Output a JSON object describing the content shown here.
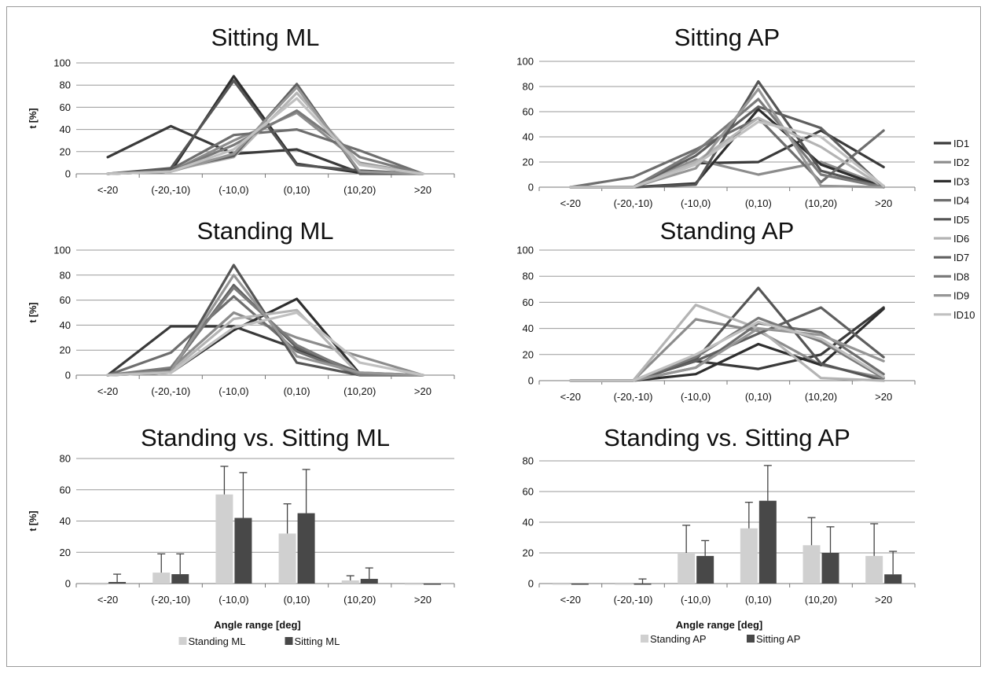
{
  "chart_data": [
    {
      "type": "line",
      "title": "Sitting ML",
      "ylabel": "t [%]",
      "ylim": [
        0,
        100
      ],
      "yticks": [
        0,
        20,
        40,
        60,
        80,
        100
      ],
      "grid": "horizontal",
      "categories": [
        "<-20",
        "(-20,-10)",
        "(-10,0)",
        "(0,10)",
        "(10,20)",
        ">20"
      ],
      "series": [
        {
          "name": "ID1",
          "color": "#3a3a3a",
          "values": [
            15,
            43,
            18,
            22,
            1,
            0
          ]
        },
        {
          "name": "ID2",
          "color": "#8c8c8c",
          "values": [
            0,
            2,
            30,
            55,
            10,
            0
          ]
        },
        {
          "name": "ID3",
          "color": "#2e2e2e",
          "values": [
            0,
            2,
            88,
            9,
            1,
            0
          ]
        },
        {
          "name": "ID4",
          "color": "#6e6e6e",
          "values": [
            0,
            4,
            35,
            40,
            21,
            0
          ]
        },
        {
          "name": "ID5",
          "color": "#555555",
          "values": [
            0,
            5,
            84,
            8,
            3,
            0
          ]
        },
        {
          "name": "ID6",
          "color": "#b4b4b4",
          "values": [
            0,
            3,
            15,
            73,
            9,
            0
          ]
        },
        {
          "name": "ID7",
          "color": "#5f5f5f",
          "values": [
            0,
            4,
            16,
            81,
            0,
            0
          ]
        },
        {
          "name": "ID8",
          "color": "#7a7a7a",
          "values": [
            0,
            2,
            26,
            57,
            15,
            0
          ]
        },
        {
          "name": "ID9",
          "color": "#969696",
          "values": [
            0,
            2,
            18,
            78,
            2,
            0
          ]
        },
        {
          "name": "ID10",
          "color": "#c0c0c0",
          "values": [
            0,
            2,
            22,
            68,
            8,
            0
          ]
        }
      ]
    },
    {
      "type": "line",
      "title": "Sitting AP",
      "ylim": [
        0,
        100
      ],
      "yticks": [
        0,
        20,
        40,
        60,
        80,
        100
      ],
      "grid": "horizontal",
      "categories": [
        "<-20",
        "(-20,-10)",
        "(-10,0)",
        "(0,10)",
        "(10,20)",
        ">20"
      ],
      "legend": "right",
      "series": [
        {
          "name": "ID1",
          "color": "#3a3a3a",
          "values": [
            0,
            0,
            19,
            20,
            45,
            16
          ]
        },
        {
          "name": "ID2",
          "color": "#8c8c8c",
          "values": [
            0,
            0,
            22,
            10,
            20,
            1
          ]
        },
        {
          "name": "ID3",
          "color": "#2e2e2e",
          "values": [
            0,
            0,
            3,
            62,
            18,
            0
          ]
        },
        {
          "name": "ID4",
          "color": "#6e6e6e",
          "values": [
            0,
            8,
            30,
            55,
            4,
            45
          ]
        },
        {
          "name": "ID5",
          "color": "#555555",
          "values": [
            0,
            0,
            2,
            84,
            13,
            0
          ]
        },
        {
          "name": "ID6",
          "color": "#b4b4b4",
          "values": [
            0,
            0,
            20,
            55,
            32,
            0
          ]
        },
        {
          "name": "ID7",
          "color": "#5f5f5f",
          "values": [
            0,
            0,
            25,
            64,
            47,
            0
          ]
        },
        {
          "name": "ID8",
          "color": "#7a7a7a",
          "values": [
            0,
            0,
            28,
            70,
            10,
            0
          ]
        },
        {
          "name": "ID9",
          "color": "#969696",
          "values": [
            0,
            0,
            15,
            78,
            1,
            0
          ]
        },
        {
          "name": "ID10",
          "color": "#c0c0c0",
          "values": [
            0,
            0,
            18,
            52,
            40,
            1
          ]
        }
      ]
    },
    {
      "type": "line",
      "title": "Standing ML",
      "ylabel": "t [%]",
      "ylim": [
        0,
        100
      ],
      "yticks": [
        0,
        20,
        40,
        60,
        80,
        100
      ],
      "grid": "horizontal",
      "categories": [
        "<-20",
        "(-20,-10)",
        "(-10,0)",
        "(0,10)",
        "(10,20)",
        ">20"
      ],
      "series": [
        {
          "name": "ID1",
          "color": "#3a3a3a",
          "values": [
            0,
            39,
            39,
            21,
            1,
            0
          ]
        },
        {
          "name": "ID2",
          "color": "#8c8c8c",
          "values": [
            0,
            5,
            50,
            30,
            15,
            0
          ]
        },
        {
          "name": "ID3",
          "color": "#2e2e2e",
          "values": [
            0,
            2,
            36,
            61,
            1,
            0
          ]
        },
        {
          "name": "ID4",
          "color": "#6e6e6e",
          "values": [
            0,
            18,
            63,
            19,
            0,
            0
          ]
        },
        {
          "name": "ID5",
          "color": "#555555",
          "values": [
            0,
            2,
            88,
            10,
            0,
            0
          ]
        },
        {
          "name": "ID6",
          "color": "#b4b4b4",
          "values": [
            0,
            3,
            45,
            52,
            0,
            0
          ]
        },
        {
          "name": "ID7",
          "color": "#5f5f5f",
          "values": [
            0,
            4,
            72,
            22,
            2,
            0
          ]
        },
        {
          "name": "ID8",
          "color": "#7a7a7a",
          "values": [
            0,
            6,
            70,
            24,
            0,
            0
          ]
        },
        {
          "name": "ID9",
          "color": "#969696",
          "values": [
            0,
            3,
            80,
            15,
            2,
            0
          ]
        },
        {
          "name": "ID10",
          "color": "#c0c0c0",
          "values": [
            0,
            2,
            38,
            50,
            10,
            0
          ]
        }
      ]
    },
    {
      "type": "line",
      "title": "Standing AP",
      "ylim": [
        0,
        100
      ],
      "yticks": [
        0,
        20,
        40,
        60,
        80,
        100
      ],
      "grid": "horizontal",
      "categories": [
        "<-20",
        "(-20,-10)",
        "(-10,0)",
        "(0,10)",
        "(10,20)",
        ">20"
      ],
      "series": [
        {
          "name": "ID1",
          "color": "#3a3a3a",
          "values": [
            0,
            0,
            15,
            9,
            20,
            56
          ]
        },
        {
          "name": "ID2",
          "color": "#8c8c8c",
          "values": [
            0,
            0,
            47,
            38,
            12,
            2
          ]
        },
        {
          "name": "ID3",
          "color": "#2e2e2e",
          "values": [
            0,
            0,
            5,
            28,
            12,
            55
          ]
        },
        {
          "name": "ID4",
          "color": "#6e6e6e",
          "values": [
            0,
            0,
            10,
            44,
            37,
            5
          ]
        },
        {
          "name": "ID5",
          "color": "#555555",
          "values": [
            0,
            0,
            16,
            71,
            13,
            0
          ]
        },
        {
          "name": "ID6",
          "color": "#b4b4b4",
          "values": [
            0,
            0,
            58,
            40,
            2,
            0
          ]
        },
        {
          "name": "ID7",
          "color": "#5f5f5f",
          "values": [
            0,
            0,
            15,
            36,
            56,
            18
          ]
        },
        {
          "name": "ID8",
          "color": "#7a7a7a",
          "values": [
            0,
            0,
            18,
            48,
            30,
            2
          ]
        },
        {
          "name": "ID9",
          "color": "#969696",
          "values": [
            0,
            0,
            10,
            40,
            35,
            15
          ]
        },
        {
          "name": "ID10",
          "color": "#c0c0c0",
          "values": [
            0,
            0,
            20,
            45,
            32,
            3
          ]
        }
      ]
    },
    {
      "type": "bar",
      "title": "Standing vs. Sitting ML",
      "xlabel": "Angle range [deg]",
      "ylabel": "t [%]",
      "ylim": [
        0,
        80
      ],
      "yticks": [
        0,
        20,
        40,
        60,
        80
      ],
      "grid": "horizontal",
      "legend": "bottom",
      "categories": [
        "<-20",
        "(-20,-10)",
        "(-10,0)",
        "(0,10)",
        "(10,20)",
        ">20"
      ],
      "series": [
        {
          "name": "Standing ML",
          "color": "#d0d0d0",
          "values": [
            0,
            7,
            57,
            32,
            2,
            0
          ],
          "error": [
            0,
            12,
            18,
            19,
            3,
            0
          ]
        },
        {
          "name": "Sitting ML",
          "color": "#484848",
          "values": [
            1,
            6,
            42,
            45,
            3,
            0
          ],
          "error": [
            5,
            13,
            29,
            28,
            7,
            0
          ]
        }
      ]
    },
    {
      "type": "bar",
      "title": "Standing vs. Sitting AP",
      "xlabel": "Angle range [deg]",
      "ylim": [
        0,
        80
      ],
      "yticks": [
        0,
        20,
        40,
        60,
        80
      ],
      "grid": "horizontal",
      "legend": "bottom",
      "categories": [
        "<-20",
        "(-20,-10)",
        "(-10,0)",
        "(0,10)",
        "(10,20)",
        ">20"
      ],
      "series": [
        {
          "name": "Standing AP",
          "color": "#d0d0d0",
          "values": [
            0,
            0,
            20,
            36,
            25,
            18
          ],
          "error": [
            0,
            0,
            18,
            17,
            18,
            21
          ]
        },
        {
          "name": "Sitting AP",
          "color": "#484848",
          "values": [
            0,
            0,
            18,
            54,
            20,
            6
          ],
          "error": [
            0,
            3,
            10,
            23,
            17,
            15
          ]
        }
      ]
    }
  ]
}
